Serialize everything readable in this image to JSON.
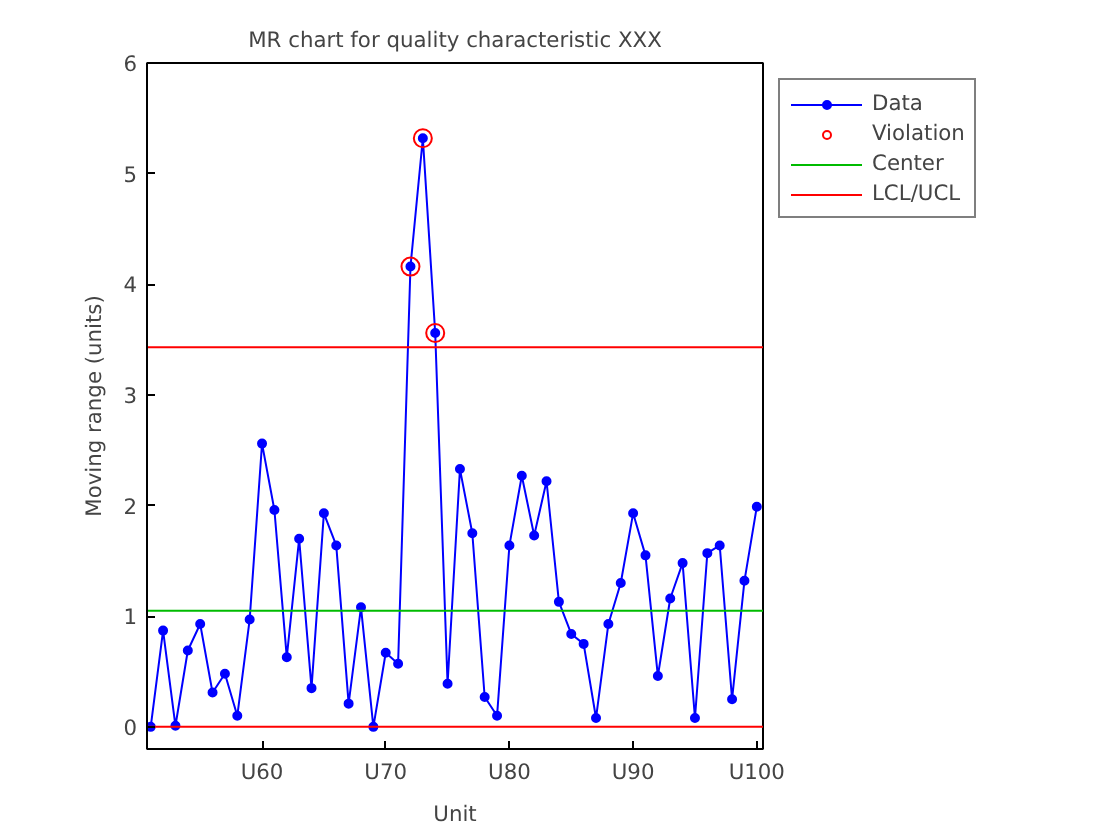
{
  "chart_data": {
    "type": "line",
    "title": "MR chart for quality characteristic XXX",
    "xlabel": "Unit",
    "ylabel": "Moving range (units)",
    "categories": [
      null,
      null,
      null,
      null,
      null,
      null,
      null,
      null,
      null,
      "U60",
      null,
      null,
      null,
      null,
      null,
      null,
      null,
      null,
      null,
      "U70",
      null,
      null,
      null,
      null,
      null,
      null,
      null,
      null,
      null,
      "U80",
      null,
      null,
      null,
      null,
      null,
      null,
      null,
      null,
      null,
      "U90",
      null,
      null,
      null,
      null,
      null,
      null,
      null,
      null,
      null,
      "U100"
    ],
    "ylim": [
      -0.2,
      6
    ],
    "yticks": [
      0,
      1,
      2,
      3,
      4,
      5,
      6
    ],
    "series": [
      {
        "name": "Data",
        "color": "#0000ff",
        "marker": "circle",
        "values": [
          0,
          0.87,
          0.01,
          0.69,
          0.93,
          0.31,
          0.48,
          0.1,
          0.97,
          2.56,
          1.96,
          0.63,
          1.7,
          0.35,
          1.93,
          1.64,
          0.21,
          1.08,
          0,
          0.67,
          0.57,
          4.16,
          5.32,
          3.56,
          0.39,
          2.33,
          1.75,
          0.27,
          0.1,
          1.64,
          2.27,
          1.73,
          2.22,
          1.13,
          0.84,
          0.75,
          0.08,
          0.93,
          1.3,
          1.93,
          1.55,
          0.46,
          1.16,
          1.48,
          0.08,
          1.57,
          1.64,
          0.25,
          1.32,
          1.99
        ]
      },
      {
        "name": "Violation",
        "color": "#ff0000",
        "type": "scatter",
        "marker": "circle",
        "values": [
          null,
          null,
          null,
          null,
          null,
          null,
          null,
          null,
          null,
          null,
          null,
          null,
          null,
          null,
          null,
          null,
          null,
          null,
          null,
          null,
          null,
          4.16,
          5.32,
          3.56,
          null,
          null,
          null,
          null,
          null,
          null,
          null,
          null,
          null,
          null,
          null,
          null,
          null,
          null,
          null,
          null,
          null,
          null,
          null,
          null,
          null,
          null,
          null,
          null,
          null,
          null
        ]
      }
    ],
    "ref_lines": [
      {
        "axis": "y",
        "value": 1.05,
        "label": "Center",
        "color": "#00bb00"
      },
      {
        "axis": "y",
        "value": 3.43,
        "label": "LCL/UCL",
        "color": "#ff0000"
      },
      {
        "axis": "y",
        "value": 0,
        "color": "#ff0000"
      }
    ],
    "grid": false,
    "legend": "top right"
  }
}
